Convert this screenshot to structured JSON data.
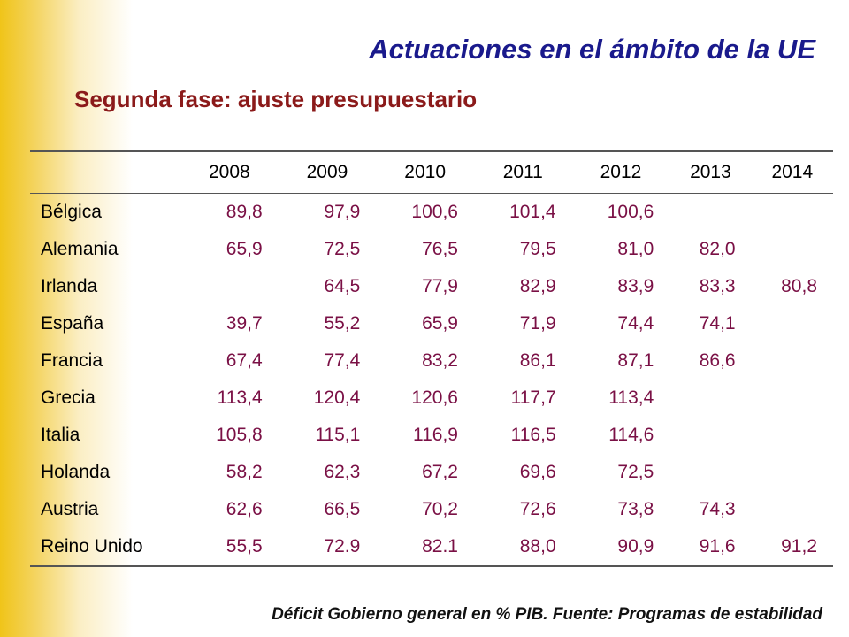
{
  "header": {
    "title": "Actuaciones en el ámbito de la UE",
    "subtitle": "Segunda fase: ajuste presupuestario"
  },
  "table": {
    "years": [
      "2008",
      "2009",
      "2010",
      "2011",
      "2012",
      "2013",
      "2014"
    ],
    "rows": [
      {
        "country": "Bélgica",
        "values": [
          "89,8",
          "97,9",
          "100,6",
          "101,4",
          "100,6",
          "",
          ""
        ]
      },
      {
        "country": "Alemania",
        "values": [
          "65,9",
          "72,5",
          "76,5",
          "79,5",
          "81,0",
          "82,0",
          ""
        ]
      },
      {
        "country": "Irlanda",
        "values": [
          "",
          "64,5",
          "77,9",
          "82,9",
          "83,9",
          "83,3",
          "80,8"
        ]
      },
      {
        "country": "España",
        "values": [
          "39,7",
          "55,2",
          "65,9",
          "71,9",
          "74,4",
          "74,1",
          ""
        ]
      },
      {
        "country": "Francia",
        "values": [
          "67,4",
          "77,4",
          "83,2",
          "86,1",
          "87,1",
          "86,6",
          ""
        ]
      },
      {
        "country": "Grecia",
        "values": [
          "113,4",
          "120,4",
          "120,6",
          "117,7",
          "113,4",
          "",
          ""
        ]
      },
      {
        "country": "Italia",
        "values": [
          "105,8",
          "115,1",
          "116,9",
          "116,5",
          "114,6",
          "",
          ""
        ]
      },
      {
        "country": "Holanda",
        "values": [
          "58,2",
          "62,3",
          "67,2",
          "69,6",
          "72,5",
          "",
          ""
        ]
      },
      {
        "country": "Austria",
        "values": [
          "62,6",
          "66,5",
          "70,2",
          "72,6",
          "73,8",
          "74,3",
          ""
        ]
      },
      {
        "country": "Reino Unido",
        "values": [
          "55,5",
          "72.9",
          "82.1",
          "88,0",
          "90,9",
          "91,6",
          "91,2"
        ]
      }
    ]
  },
  "footer": {
    "note": "Déficit Gobierno general en % PIB. Fuente: Programas de estabilidad"
  },
  "colors": {
    "title": "#1a1a8c",
    "subtitle": "#8b1a1a",
    "values": "#7a1045",
    "side_band": "#f0c419"
  }
}
